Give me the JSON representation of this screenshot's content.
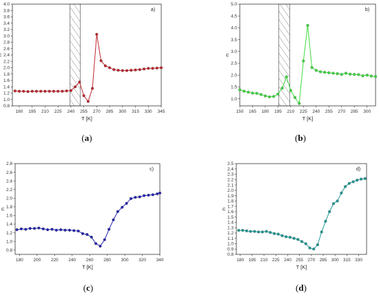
{
  "chart_data": [
    {
      "type": "line",
      "panel_label": "a)",
      "caption": {
        "open": "(",
        "letter": "a",
        "close": ")"
      },
      "xlabel": "T [K]",
      "ylabel": "n",
      "xlim": [
        172,
        345
      ],
      "ylim": [
        0.8,
        4.0
      ],
      "xticks": [
        180,
        195,
        210,
        225,
        240,
        255,
        270,
        285,
        300,
        315,
        330,
        345
      ],
      "yticks": [
        0.8,
        1.0,
        1.2,
        1.4,
        1.6,
        1.8,
        2.0,
        2.2,
        2.4,
        2.6,
        2.8,
        3.0,
        3.2,
        3.4,
        3.6,
        3.8,
        4.0
      ],
      "hatch": [
        239,
        251
      ],
      "color": "#c0262d",
      "series": [
        {
          "x": [
            175,
            180,
            185,
            190,
            195,
            200,
            205,
            210,
            215,
            220,
            225,
            230,
            235,
            240,
            245,
            250,
            255,
            260,
            265,
            270,
            275,
            280,
            285,
            290,
            295,
            300,
            305,
            310,
            315,
            320,
            325,
            330,
            335,
            340,
            345
          ],
          "y": [
            1.27,
            1.26,
            1.26,
            1.25,
            1.26,
            1.26,
            1.26,
            1.26,
            1.26,
            1.26,
            1.26,
            1.26,
            1.27,
            1.28,
            1.4,
            1.55,
            1.12,
            0.94,
            1.35,
            3.05,
            2.22,
            2.06,
            2.0,
            1.94,
            1.92,
            1.91,
            1.91,
            1.92,
            1.93,
            1.94,
            1.96,
            1.98,
            1.98,
            1.99,
            2.0
          ]
        }
      ]
    },
    {
      "type": "line",
      "panel_label": "b)",
      "caption": {
        "open": "(",
        "letter": "b",
        "close": ")"
      },
      "xlabel": "T [K]",
      "ylabel": "n",
      "xlim": [
        150,
        310
      ],
      "ylim": [
        0.7,
        5.0
      ],
      "xticks": [
        150,
        165,
        180,
        195,
        210,
        225,
        240,
        255,
        270,
        285,
        300
      ],
      "yticks": [
        1.0,
        1.5,
        2.0,
        2.5,
        3.0,
        3.5,
        4.0,
        4.5,
        5.0
      ],
      "hatch": [
        196,
        209
      ],
      "color": "#3ddc3d",
      "series": [
        {
          "x": [
            150,
            155,
            160,
            165,
            170,
            175,
            180,
            185,
            190,
            195,
            200,
            205,
            210,
            215,
            220,
            225,
            230,
            235,
            240,
            245,
            250,
            255,
            260,
            265,
            270,
            275,
            280,
            285,
            290,
            295,
            300,
            305,
            310
          ],
          "y": [
            1.38,
            1.32,
            1.28,
            1.24,
            1.23,
            1.18,
            1.12,
            1.08,
            1.1,
            1.2,
            1.45,
            1.93,
            1.35,
            1.05,
            0.8,
            2.6,
            4.1,
            2.32,
            2.2,
            2.14,
            2.12,
            2.1,
            2.08,
            2.06,
            2.03,
            2.08,
            2.04,
            2.03,
            2.02,
            1.97,
            2.0,
            1.96,
            1.94
          ]
        }
      ]
    },
    {
      "type": "line",
      "panel_label": "c)",
      "caption": {
        "open": "(",
        "letter": "c",
        "close": ")"
      },
      "xlabel": "T [K]",
      "ylabel": "n",
      "xlim": [
        175,
        340
      ],
      "ylim": [
        0.7,
        2.8
      ],
      "xticks": [
        180,
        200,
        220,
        240,
        260,
        280,
        300,
        320,
        340
      ],
      "yticks": [
        0.8,
        1.0,
        1.2,
        1.4,
        1.6,
        1.8,
        2.0,
        2.2,
        2.4,
        2.6,
        2.8
      ],
      "color": "#2424b0",
      "series": [
        {
          "x": [
            177,
            182,
            187,
            192,
            197,
            202,
            207,
            212,
            217,
            222,
            227,
            232,
            237,
            242,
            247,
            252,
            257,
            262,
            267,
            272,
            277,
            282,
            287,
            292,
            297,
            302,
            307,
            312,
            317,
            322,
            327,
            332,
            337,
            340
          ],
          "y": [
            1.27,
            1.29,
            1.28,
            1.3,
            1.3,
            1.31,
            1.29,
            1.27,
            1.28,
            1.26,
            1.27,
            1.26,
            1.26,
            1.25,
            1.24,
            1.18,
            1.16,
            1.1,
            0.95,
            0.89,
            1.04,
            1.28,
            1.5,
            1.69,
            1.79,
            1.88,
            1.99,
            2.02,
            2.03,
            2.06,
            2.07,
            2.08,
            2.1,
            2.12
          ]
        }
      ]
    },
    {
      "type": "line",
      "panel_label": "d)",
      "caption": {
        "open": "(",
        "letter": "d",
        "close": ")"
      },
      "xlabel": "T [K]",
      "ylabel": "n",
      "xlim": [
        175,
        340
      ],
      "ylim": [
        0.8,
        2.5
      ],
      "xticks": [
        180,
        195,
        210,
        225,
        240,
        255,
        270,
        285,
        300,
        315,
        330
      ],
      "yticks": [
        0.8,
        0.9,
        1.0,
        1.1,
        1.2,
        1.3,
        1.4,
        1.5,
        1.6,
        1.7,
        1.8,
        1.9,
        2.0,
        2.1,
        2.2,
        2.3,
        2.4,
        2.5
      ],
      "color": "#1e9a96",
      "series": [
        {
          "x": [
            178,
            183,
            188,
            193,
            198,
            203,
            208,
            213,
            218,
            223,
            228,
            233,
            238,
            243,
            248,
            253,
            258,
            263,
            268,
            273,
            278,
            283,
            288,
            293,
            298,
            303,
            308,
            313,
            318,
            323,
            328,
            333,
            338
          ],
          "y": [
            1.25,
            1.25,
            1.24,
            1.23,
            1.23,
            1.22,
            1.22,
            1.23,
            1.21,
            1.19,
            1.18,
            1.15,
            1.13,
            1.12,
            1.1,
            1.08,
            1.04,
            1.0,
            0.92,
            0.9,
            0.98,
            1.22,
            1.42,
            1.6,
            1.75,
            1.8,
            1.95,
            2.07,
            2.13,
            2.16,
            2.19,
            2.21,
            2.22
          ]
        }
      ]
    }
  ]
}
